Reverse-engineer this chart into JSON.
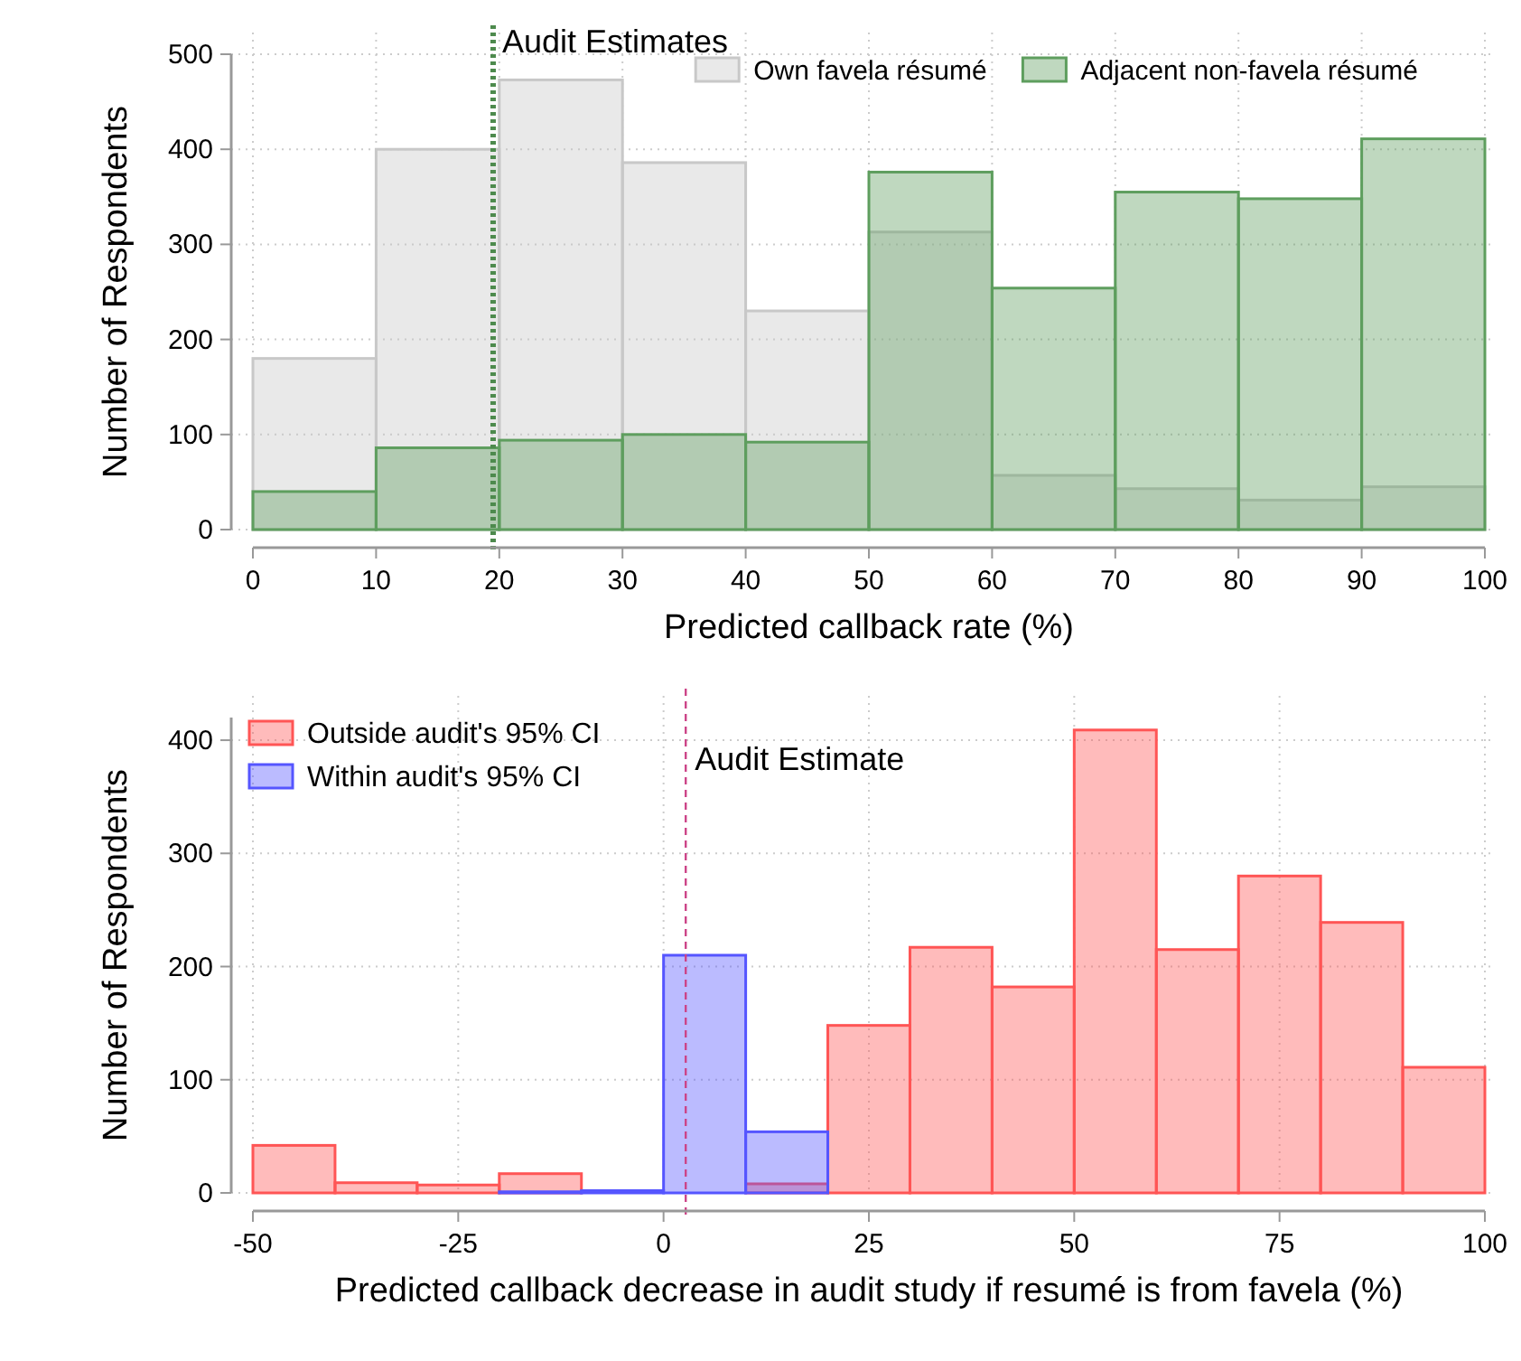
{
  "chart_data": [
    {
      "type": "histogram",
      "xlabel": "Predicted callback rate (%)",
      "ylabel": "Number of Respondents",
      "bins": [
        0,
        10,
        20,
        30,
        40,
        50,
        60,
        70,
        80,
        90,
        100
      ],
      "series": [
        {
          "name": "Own favela résumé",
          "color": "#c8c8c8",
          "values": [
            180,
            400,
            473,
            386,
            230,
            313,
            57,
            43,
            31,
            45
          ]
        },
        {
          "name": "Adjacent non-favela résumé",
          "color": "#5e9e5e",
          "values": [
            40,
            86,
            94,
            100,
            92,
            376,
            254,
            355,
            348,
            411
          ]
        }
      ],
      "xlim": [
        0,
        100
      ],
      "xticks": [
        0,
        10,
        20,
        30,
        40,
        50,
        60,
        70,
        80,
        90,
        100
      ],
      "ylim": [
        0,
        500
      ],
      "yticks": [
        0,
        100,
        200,
        300,
        400,
        500
      ],
      "ref_lines": [
        {
          "axis": "x",
          "value": 19.5,
          "label": "Audit Estimates",
          "color": "#4d8a4d",
          "line_style": "dotted"
        }
      ],
      "grid": true,
      "legend": "top right"
    },
    {
      "type": "histogram",
      "xlabel": "Predicted callback decrease in audit study if resumé is from favela (%)",
      "ylabel": "Number of Respondents",
      "bins": [
        -50,
        -40,
        -30,
        -20,
        -10,
        0,
        10,
        20,
        30,
        40,
        50,
        60,
        70,
        80,
        90,
        100
      ],
      "series": [
        {
          "name": "Outside audit's 95% CI",
          "color": "#ff5555",
          "values": [
            42,
            9,
            7,
            17,
            null,
            null,
            8,
            148,
            217,
            182,
            409,
            215,
            280,
            239,
            111
          ]
        },
        {
          "name": "Within audit's 95% CI",
          "color": "#5555ff",
          "values": [
            null,
            null,
            null,
            1,
            2,
            210,
            54,
            null,
            null,
            null,
            null,
            null,
            null,
            null,
            null
          ]
        }
      ],
      "xlim": [
        -50,
        100
      ],
      "xticks": [
        -50,
        -25,
        0,
        25,
        50,
        75,
        100
      ],
      "ylim": [
        0,
        420
      ],
      "yticks": [
        0,
        100,
        200,
        300,
        400
      ],
      "ref_lines": [
        {
          "axis": "x",
          "value": 2.7,
          "label": "Audit Estimate",
          "color": "#cc4488",
          "line_style": "dashed"
        }
      ],
      "grid": true,
      "legend": "top left"
    }
  ]
}
